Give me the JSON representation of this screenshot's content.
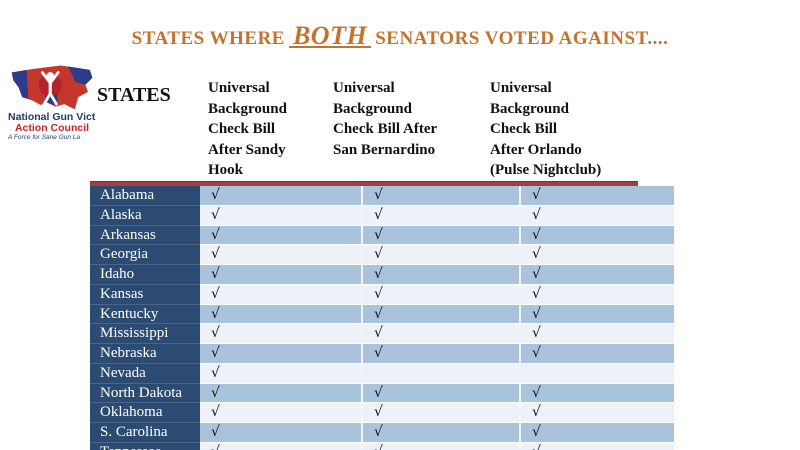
{
  "title": {
    "prefix": "STATES WHERE",
    "emphasis": "BOTH",
    "suffix": "SENATORS VOTED AGAINST....",
    "color": "#c2732e"
  },
  "logo": {
    "org_name_visible": "National Gun Victi",
    "org_subname": "Action Council",
    "tagline_visible": "A Force for Sane Gun La",
    "colors": {
      "red": "#cf2027",
      "navy": "#1f3b73"
    }
  },
  "table": {
    "states_header": "STATES",
    "column_headers": [
      "Universal\nBackground\nCheck Bill\nAfter Sandy\nHook",
      "Universal\nBackground\nCheck Bill After\nSan Bernardino",
      "Universal\nBackground\nCheck Bill\nAfter Orlando\n(Pulse Nightclub)"
    ],
    "checkmark_glyph": "√",
    "colors": {
      "top_border": "#9e4145",
      "state_column_bg": "#2b4b72",
      "row_blue": "#a9c3dd",
      "row_light": "#edf1f8"
    },
    "rows": [
      {
        "state": "Alabama",
        "checks": [
          true,
          true,
          true
        ]
      },
      {
        "state": "Alaska",
        "checks": [
          true,
          true,
          true
        ]
      },
      {
        "state": "Arkansas",
        "checks": [
          true,
          true,
          true
        ]
      },
      {
        "state": "Georgia",
        "checks": [
          true,
          true,
          true
        ]
      },
      {
        "state": "Idaho",
        "checks": [
          true,
          true,
          true
        ]
      },
      {
        "state": "Kansas",
        "checks": [
          true,
          true,
          true
        ]
      },
      {
        "state": "Kentucky",
        "checks": [
          true,
          true,
          true
        ]
      },
      {
        "state": "Mississippi",
        "checks": [
          true,
          true,
          true
        ]
      },
      {
        "state": "Nebraska",
        "checks": [
          true,
          true,
          true
        ]
      },
      {
        "state": "Nevada",
        "checks": [
          true,
          false,
          false
        ]
      },
      {
        "state": "North Dakota",
        "checks": [
          true,
          true,
          true
        ]
      },
      {
        "state": "Oklahoma",
        "checks": [
          true,
          true,
          true
        ]
      },
      {
        "state": "S. Carolina",
        "checks": [
          true,
          true,
          true
        ]
      },
      {
        "state": "Tennessee",
        "checks": [
          true,
          true,
          true
        ],
        "partially_visible": true
      }
    ]
  }
}
